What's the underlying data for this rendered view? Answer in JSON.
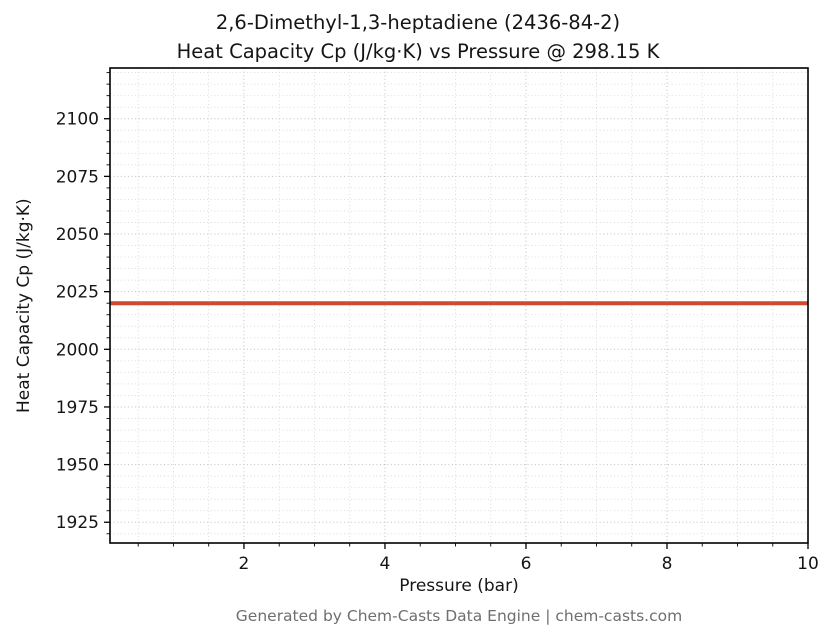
{
  "title_lines": [
    "2,6-Dimethyl-1,3-heptadiene (2436-84-2)",
    "Heat Capacity Cp (J/kg·K) vs Pressure @ 298.15 K"
  ],
  "footer": "Generated by Chem-Casts Data Engine | chem-casts.com",
  "chart_data": {
    "type": "line",
    "title": "2,6-Dimethyl-1,3-heptadiene (2436-84-2)\nHeat Capacity Cp (J/kg·K) vs Pressure @ 298.15 K",
    "xlabel": "Pressure (bar)",
    "ylabel": "Heat Capacity Cp (J/kg·K)",
    "xlim": [
      0.1,
      10
    ],
    "ylim": [
      1916,
      2122
    ],
    "xticks": [
      2,
      4,
      6,
      8,
      10
    ],
    "yticks": [
      1925,
      1950,
      1975,
      2000,
      2025,
      2050,
      2075,
      2100
    ],
    "x_minor_step": 0.5,
    "y_minor_step": 5,
    "grid": true,
    "grid_style": "dotted",
    "legend": "none",
    "series": [
      {
        "name": "Heat Capacity Cp",
        "color": "#d1492e",
        "x": [
          0.1,
          10
        ],
        "y": [
          2020,
          2020
        ]
      }
    ]
  }
}
